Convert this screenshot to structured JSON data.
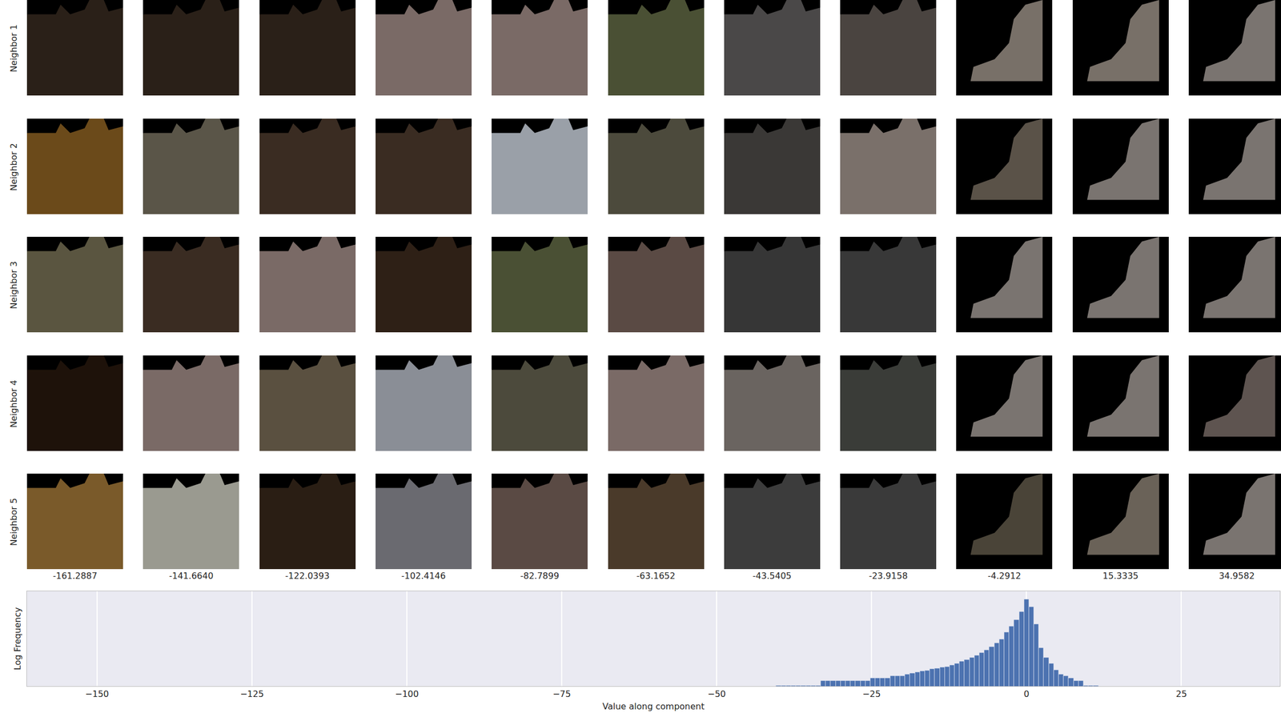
{
  "chart_data": {
    "type": "histogram",
    "x_label": "Value along component",
    "y_label": "Log Frequency",
    "bins": [
      -40.4,
      -39.6,
      -38.8,
      -38,
      -37.2,
      -36.4,
      -35.6,
      -34.8,
      -34,
      -33.2,
      -32.4,
      -31.6,
      -30.8,
      -30,
      -29.2,
      -28.4,
      -27.6,
      -26.8,
      -26,
      -25.2,
      -24.4,
      -23.6,
      -22.8,
      -22,
      -21.2,
      -20.4,
      -19.6,
      -18.8,
      -18,
      -17.2,
      -16.4,
      -15.6,
      -14.8,
      -14,
      -13.2,
      -12.4,
      -11.6,
      -10.8,
      -10,
      -9.2,
      -8.4,
      -7.6,
      -6.8,
      -6,
      -5.2,
      -4.4,
      -3.6,
      -2.8,
      -2,
      -1.2,
      -0.4,
      0.4,
      1.2,
      2,
      2.8,
      3.6,
      4.4,
      5.2,
      6,
      6.8,
      7.6,
      8.4,
      9.2,
      10,
      10.8,
      11.6
    ],
    "values": [
      1,
      1,
      1,
      1,
      1,
      1,
      1,
      1,
      1,
      2,
      2,
      2,
      2,
      2,
      2,
      2,
      2,
      2,
      2,
      3,
      3,
      3,
      3,
      4,
      4,
      4,
      5,
      6,
      7,
      8,
      9,
      11,
      12,
      14,
      16,
      20,
      25,
      33,
      45,
      60,
      85,
      120,
      180,
      300,
      500,
      900,
      2500,
      6000,
      15000,
      50000,
      300000,
      100000,
      8000,
      250,
      60,
      25,
      10,
      5,
      4,
      3,
      2,
      2,
      1,
      1,
      1
    ],
    "color": "#4c72b0",
    "xlim": [
      -161.3,
      40.9
    ],
    "xticks": [
      {
        "value": -150,
        "label": "−150"
      },
      {
        "value": -125,
        "label": "−125"
      },
      {
        "value": -100,
        "label": "−100"
      },
      {
        "value": -75,
        "label": "−75"
      },
      {
        "value": -50,
        "label": "−50"
      },
      {
        "value": -25,
        "label": "−25"
      },
      0,
      25
    ],
    "ylim": [
      0.9,
      1000000
    ],
    "log": "y",
    "grid": true,
    "tick_labels": "x"
  },
  "patch_grid": {
    "row_labels": [
      "Neighbor 1",
      "Neighbor 2",
      "Neighbor 3",
      "Neighbor 4",
      "Neighbor 5"
    ],
    "column_labels": [
      "-161.2887",
      "-141.6640",
      "-122.0393",
      "-102.4146",
      "-82.7899",
      "-63.1652",
      "-43.5405",
      "-23.9158",
      "-4.2912",
      "15.3335",
      "34.9582"
    ]
  }
}
